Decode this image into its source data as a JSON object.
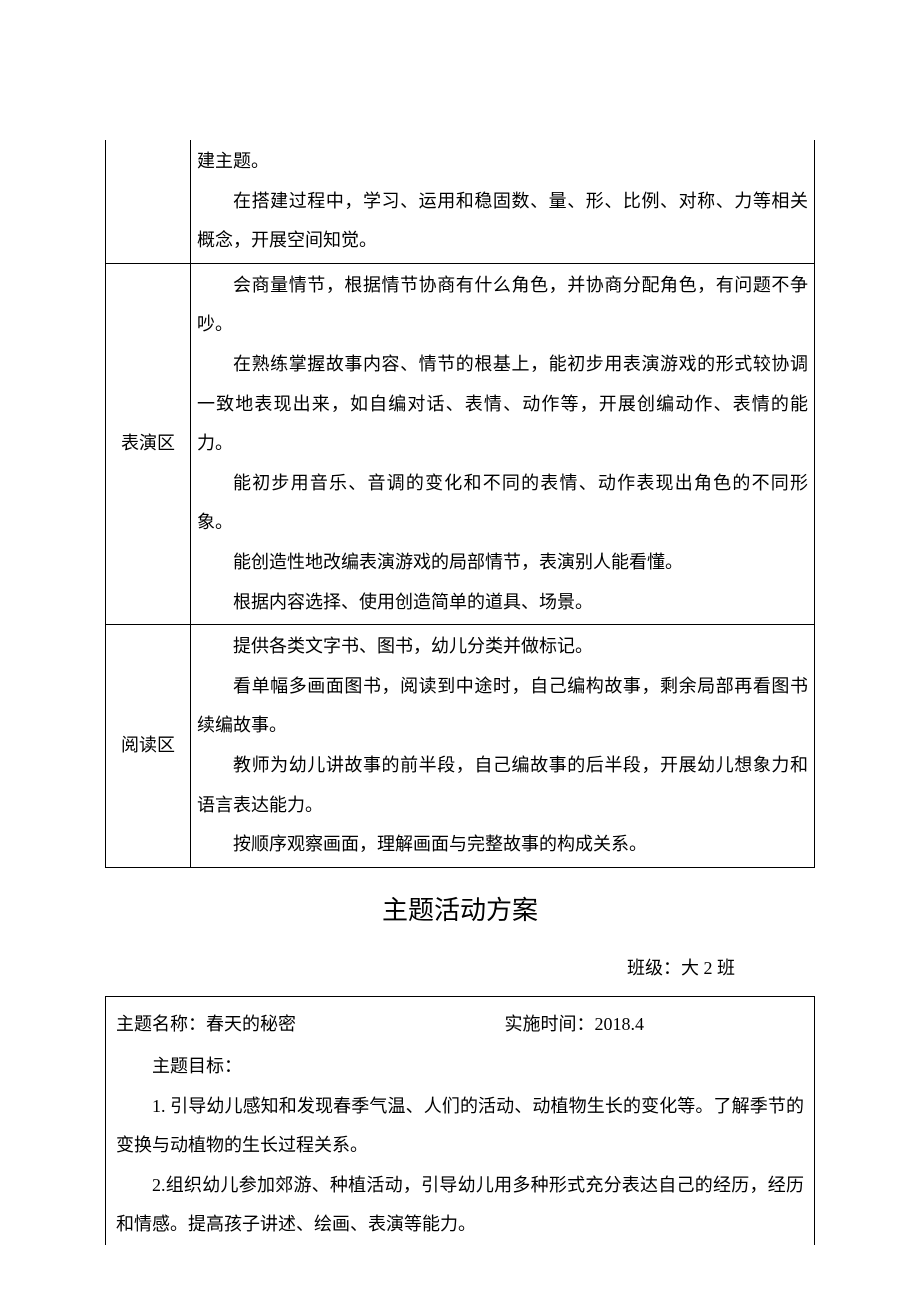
{
  "rows": [
    {
      "label": "",
      "paras": [
        "建主题。",
        "在搭建过程中，学习、运用和稳固数、量、形、比例、对称、力等相关概念，开展空间知觉。"
      ]
    },
    {
      "label": "表演区",
      "paras": [
        "会商量情节，根据情节协商有什么角色，并协商分配角色，有问题不争吵。",
        "在熟练掌握故事内容、情节的根基上，能初步用表演游戏的形式较协调一致地表现出来，如自编对话、表情、动作等，开展创编动作、表情的能力。",
        "能初步用音乐、音调的变化和不同的表情、动作表现出角色的不同形象。",
        "能创造性地改编表演游戏的局部情节，表演别人能看懂。",
        "根据内容选择、使用创造简单的道具、场景。"
      ]
    },
    {
      "label": "阅读区",
      "paras": [
        "提供各类文字书、图书，幼儿分类并做标记。",
        "看单幅多画面图书，阅读到中途时，自己编构故事，剩余局部再看图书续编故事。",
        "教师为幼儿讲故事的前半段，自己编故事的后半段，开展幼儿想象力和语言表达能力。",
        "按顺序观察画面，理解画面与完整故事的构成关系。"
      ]
    }
  ],
  "title": "主题活动方案",
  "class_label": "班级：大 2 班",
  "box": {
    "theme_name": "主题名称：春天的秘密",
    "impl_time": "实施时间：2018.4",
    "goal_head": "主题目标：",
    "goals": [
      "1. 引导幼儿感知和发现春季气温、人们的活动、动植物生长的变化等。了解季节的变换与动植物的生长过程关系。",
      "2.组织幼儿参加郊游、种植活动，引导幼儿用多种形式充分表达自己的经历，经历和情感。提高孩子讲述、绘画、表演等能力。"
    ]
  }
}
